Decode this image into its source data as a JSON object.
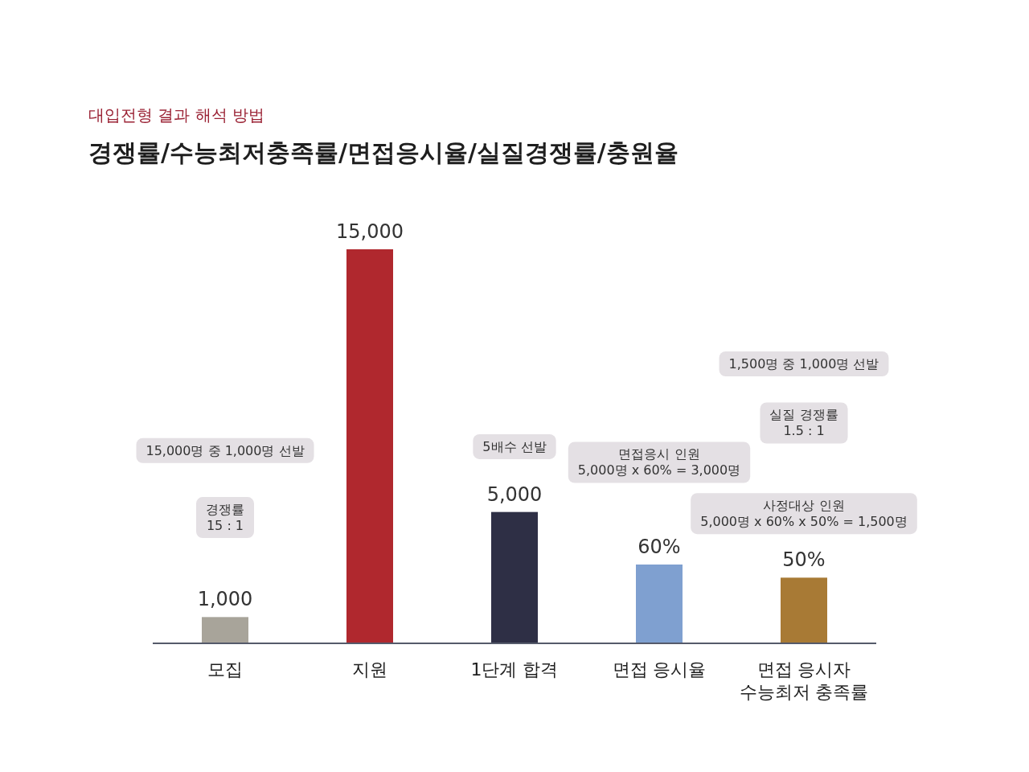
{
  "chart_data": {
    "type": "bar",
    "title": "경쟁률/수능최저충족률/면접응시율/실질경쟁률/충원율",
    "subtitle": "대입전형 결과 해석 방법",
    "categories": [
      "모집",
      "지원",
      "1단계 합격",
      "면접 응시율",
      "면접 응시자 수능최저 충족률"
    ],
    "series": [
      {
        "values": [
          1000,
          15000,
          5000,
          null,
          null
        ],
        "colors": [
          "#a8a49a",
          "#b0282e",
          "#2e2f45",
          null,
          null
        ],
        "value_labels": [
          "1,000",
          "15,000",
          "5,000",
          null,
          null
        ]
      },
      {
        "axis": "y2",
        "values": [
          null,
          null,
          null,
          60,
          50
        ],
        "colors": [
          null,
          null,
          null,
          "#7fa0d0",
          "#a87a35"
        ],
        "value_labels": [
          null,
          null,
          null,
          "60%",
          "50%"
        ]
      }
    ],
    "ylim": [
      0,
      15000
    ],
    "y2lim": [
      0,
      300
    ],
    "tick_labels": "x",
    "annotations": [
      "15,000명 중 1,000명 선발",
      "경쟁률\n15 : 1",
      "5배수 선발",
      "1,500명 중 1,000명 선발",
      "실질 경쟁률\n1.5 : 1",
      "사정대상 인원\n5,000명 x 60% x 50% = 1,500명",
      "면접응시 인원\n5,000명 x 60% = 3,000명"
    ]
  }
}
